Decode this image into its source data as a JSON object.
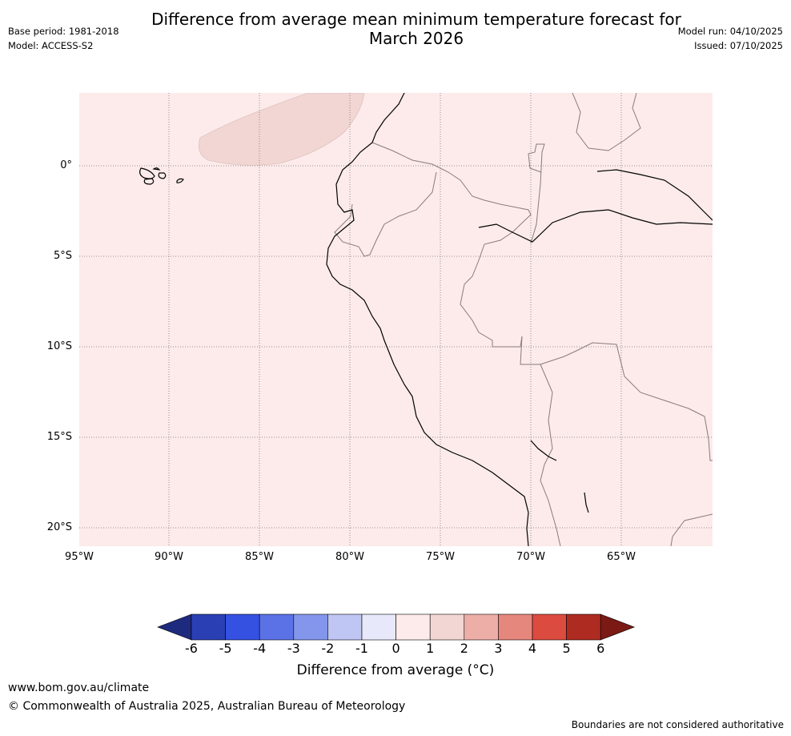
{
  "header": {
    "title_line1": "Difference from average mean minimum temperature forecast for",
    "title_line2": "March 2026",
    "base_period": "Base period: 1981-2018",
    "model": "Model: ACCESS-S2",
    "model_run": "Model run: 04/10/2025",
    "issued": "Issued: 07/10/2025"
  },
  "map": {
    "background_anomaly_class": "0 to 1",
    "offshore_patch_class": "1 to 2",
    "lat_labels": [
      "0°",
      "5°S",
      "10°S",
      "15°S",
      "20°S"
    ],
    "lon_labels": [
      "95°W",
      "90°W",
      "85°W",
      "80°W",
      "75°W",
      "70°W",
      "65°W"
    ]
  },
  "colorbar": {
    "title": "Difference from average (°C)",
    "ticks": [
      "-6",
      "-5",
      "-4",
      "-3",
      "-2",
      "-1",
      "0",
      "1",
      "2",
      "3",
      "4",
      "5",
      "6"
    ],
    "colors": [
      "#1e2a7d",
      "#2b3fb5",
      "#3451e2",
      "#5b72e6",
      "#8396ec",
      "#bfc6f4",
      "#e7e9fb",
      "#fcebea",
      "#f2d6d3",
      "#eeaea8",
      "#e6877d",
      "#dc4b3f",
      "#ae2b21",
      "#7b1a15"
    ]
  },
  "footer": {
    "site": "www.bom.gov.au/climate",
    "copyright": "© Commonwealth of Australia 2025, Australian Bureau of Meteorology",
    "disclaimer": "Boundaries are not considered authoritative"
  }
}
